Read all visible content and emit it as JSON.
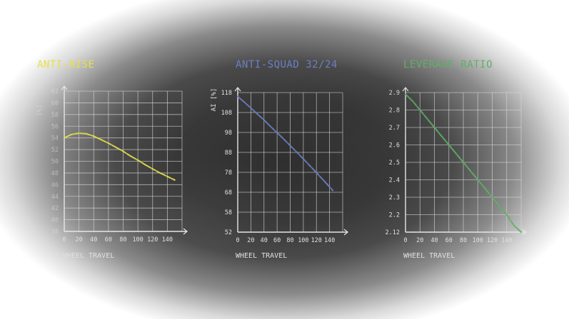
{
  "colors": {
    "grid": "#d8d8d8",
    "axis": "#e6e6e6",
    "text": "#e0e0e0",
    "anti_rise": "#e6e04a",
    "anti_squad": "#6d7fc4",
    "leverage": "#5fb067"
  },
  "chart_data": [
    {
      "type": "line",
      "title": "ANTI-RISE",
      "xlabel": "WHEEL TRAVEL",
      "ylabel": "[%]",
      "xlim": [
        0,
        150
      ],
      "ylim": [
        38,
        62
      ],
      "xticks": [
        "0",
        "20",
        "40",
        "60",
        "80",
        "100",
        "120",
        "140"
      ],
      "yticks": [
        "38",
        "40",
        "42",
        "44",
        "46",
        "48",
        "50",
        "52",
        "54",
        "56",
        "58",
        "60",
        "62"
      ],
      "series": [
        {
          "x": [
            0,
            10,
            20,
            30,
            40,
            50,
            60,
            70,
            80,
            90,
            100,
            110,
            120,
            130,
            140,
            150
          ],
          "y": [
            54.0,
            54.6,
            54.8,
            54.7,
            54.3,
            53.7,
            53.1,
            52.4,
            51.7,
            50.9,
            50.2,
            49.4,
            48.7,
            48.0,
            47.4,
            46.8
          ]
        }
      ]
    },
    {
      "type": "line",
      "title": "ANTI-SQUAD 32/24",
      "xlabel": "WHEEL TRAVEL",
      "ylabel": "AI [%]",
      "xlim": [
        0,
        150
      ],
      "ylim": [
        52,
        118
      ],
      "xticks": [
        "0",
        "20",
        "40",
        "60",
        "80",
        "100",
        "120",
        "140"
      ],
      "yticks": [
        "52",
        "58",
        "68",
        "78",
        "88",
        "98",
        "108",
        "118"
      ],
      "series": [
        {
          "x": [
            0,
            10,
            20,
            30,
            40,
            50,
            60,
            70,
            80,
            90,
            100,
            110,
            120,
            130,
            140,
            145
          ],
          "y": [
            116,
            113.2,
            110.2,
            107.2,
            104.2,
            101.0,
            97.9,
            94.7,
            91.4,
            88.1,
            84.7,
            81.3,
            77.8,
            74.3,
            70.7,
            68.9
          ]
        }
      ]
    },
    {
      "type": "line",
      "title": "LEVERAGE RATIO",
      "xlabel": "WHEEL TRAVEL",
      "ylabel": "",
      "xlim": [
        0,
        160
      ],
      "ylim": [
        2.12,
        2.9
      ],
      "xticks": [
        "0",
        "20",
        "40",
        "60",
        "80",
        "100",
        "120",
        "140"
      ],
      "yticks": [
        "2.12",
        "2.2",
        "2.3",
        "2.4",
        "2.5",
        "2.6",
        "2.7",
        "2.8",
        "2.9"
      ],
      "series": [
        {
          "x": [
            0,
            10,
            20,
            30,
            40,
            50,
            60,
            70,
            80,
            90,
            100,
            110,
            120,
            130,
            140,
            150,
            160
          ],
          "y": [
            2.89,
            2.85,
            2.8,
            2.75,
            2.7,
            2.65,
            2.6,
            2.55,
            2.5,
            2.45,
            2.4,
            2.35,
            2.3,
            2.25,
            2.2,
            2.15,
            2.12
          ]
        }
      ]
    }
  ]
}
